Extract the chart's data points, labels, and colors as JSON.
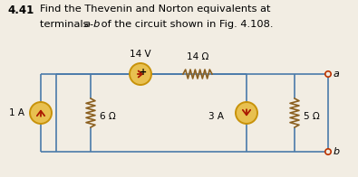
{
  "bg_color": "#f2ede3",
  "wire_color": "#4a7aaa",
  "resistor_color": "#8B6020",
  "source_stroke": "#c8920a",
  "source_fill": "#e8c050",
  "arrow_color": "#aa1800",
  "label_color": "#000000",
  "V14": "14 V",
  "R14": "14 Ω",
  "R6": "6 Ω",
  "R5": "5 Ω",
  "I1A": "1 A",
  "I3A": "3 A",
  "terminal_a": "a",
  "terminal_b": "b",
  "title_num": "4.41",
  "title_line1": "Find the Thevenin and Norton equivalents at",
  "title_line2_pre": "terminals ",
  "title_line2_italic": "a-b",
  "title_line2_post": " of the circuit shown in Fig. 4.108."
}
